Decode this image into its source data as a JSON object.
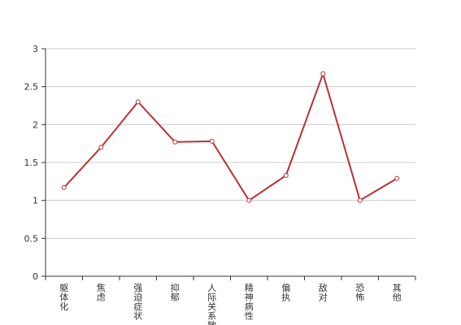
{
  "chart_data": {
    "type": "line",
    "categories": [
      "躯体化",
      "焦虑",
      "强迫症状",
      "抑郁",
      "人际关系敏感",
      "精神病性",
      "偏执",
      "敌对",
      "恐怖",
      "其他"
    ],
    "series": [
      {
        "values": [
          1.17,
          1.7,
          2.3,
          1.77,
          1.78,
          1.0,
          1.33,
          2.67,
          1.0,
          1.29
        ]
      }
    ],
    "yticks": [
      "0",
      "0.5",
      "1",
      "1.5",
      "2",
      "2.5",
      "3"
    ],
    "ylim": [
      0,
      3
    ],
    "grid": true,
    "line_color": "#b83232"
  }
}
